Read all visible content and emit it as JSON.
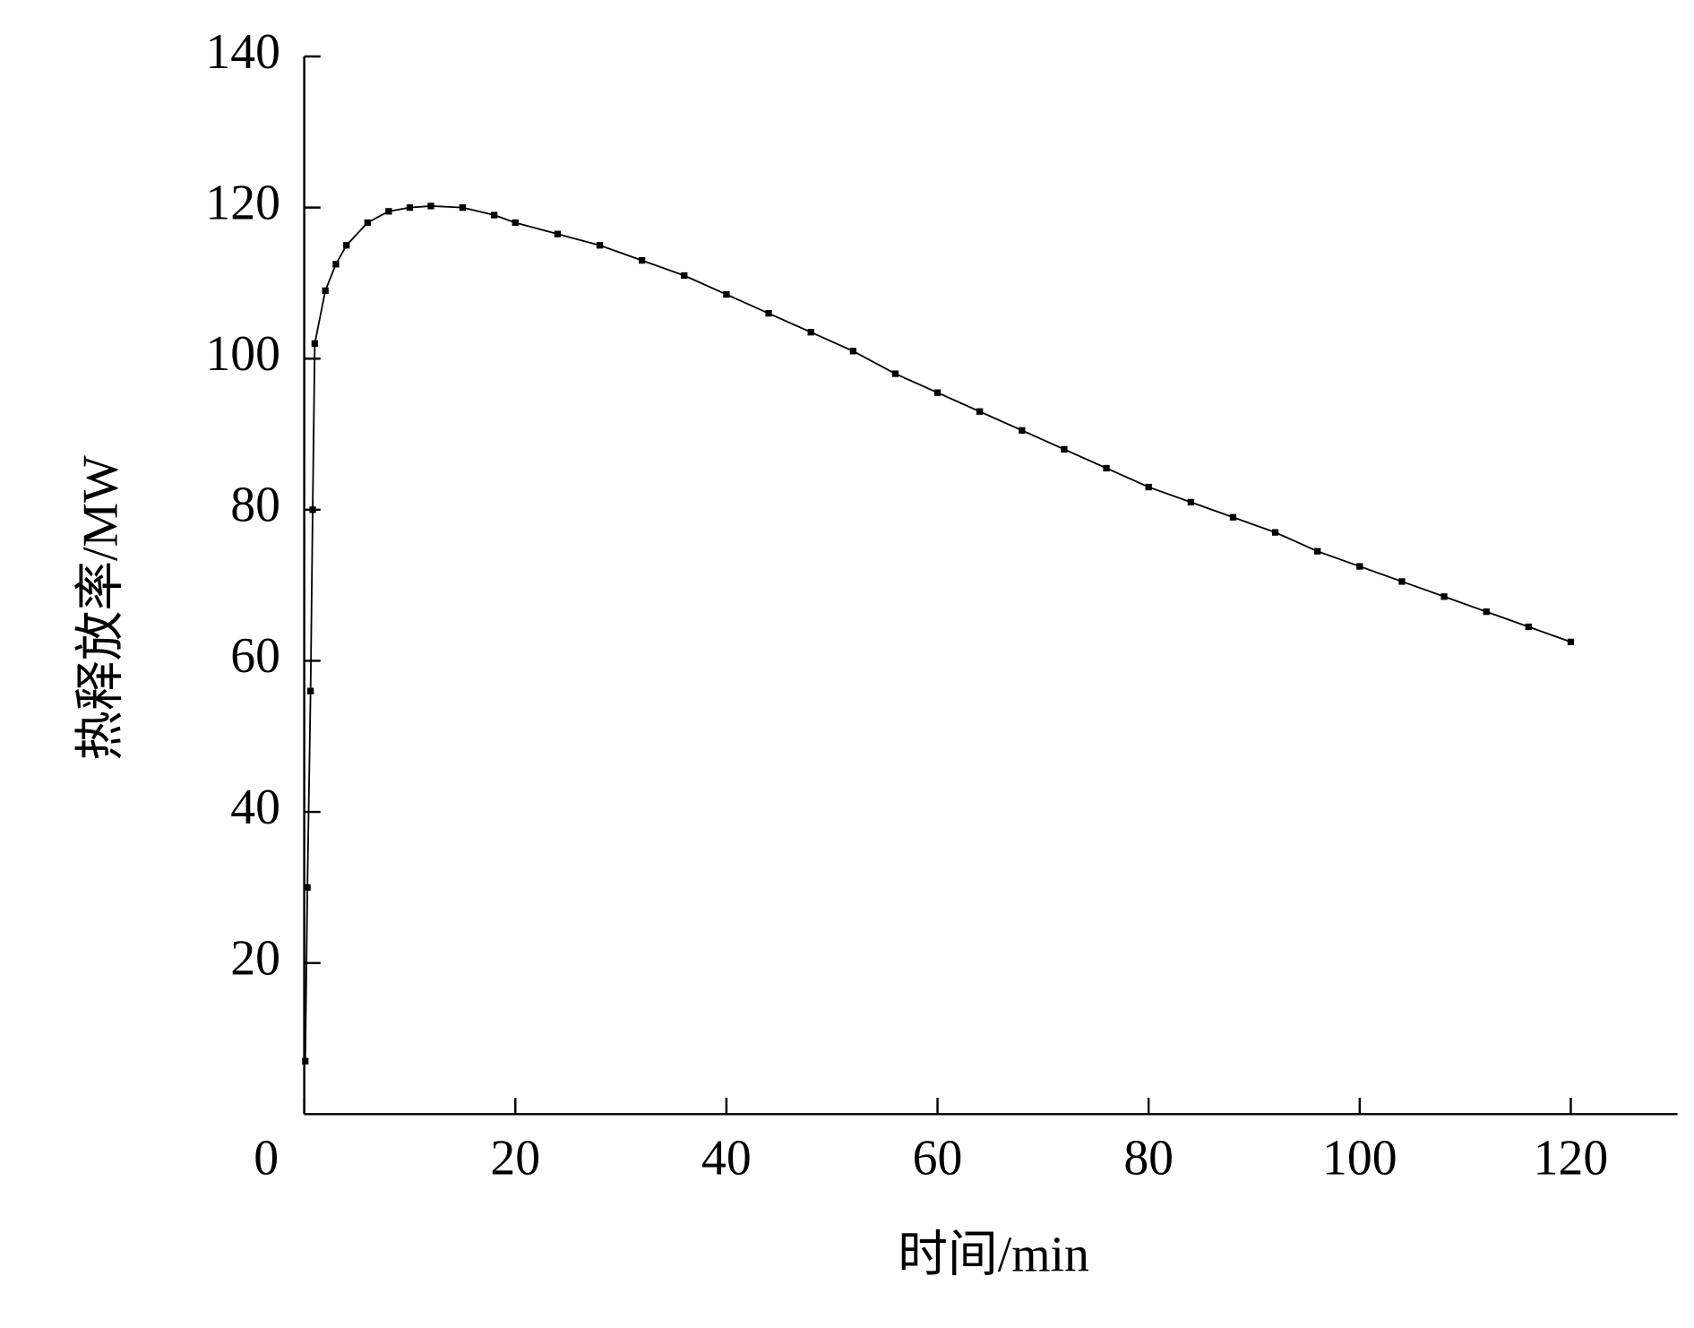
{
  "chart_data": {
    "type": "line",
    "x_label": "时间/min",
    "y_label": "热释放率/MW",
    "xlim": [
      0,
      130
    ],
    "ylim": [
      0,
      140
    ],
    "xticks": [
      0,
      20,
      40,
      60,
      80,
      100,
      120
    ],
    "yticks": [
      20,
      40,
      60,
      80,
      100,
      120,
      140
    ],
    "grid": false,
    "series": [
      {
        "color": "#000000",
        "x": [
          0.1,
          0.3,
          0.6,
          0.8,
          1,
          2,
          3,
          4,
          6,
          8,
          10,
          12,
          15,
          18,
          20,
          24,
          28,
          32,
          36,
          40,
          44,
          48,
          52,
          56,
          60,
          64,
          68,
          72,
          76,
          80,
          84,
          88,
          92,
          96,
          100,
          104,
          108,
          112,
          116,
          120
        ],
        "values": [
          7,
          30,
          56,
          80,
          102,
          109,
          112.5,
          115,
          118,
          119.5,
          120,
          120.2,
          120,
          119,
          118,
          116.5,
          115,
          113,
          111,
          108.5,
          106,
          103.5,
          101,
          98,
          95.5,
          93,
          90.5,
          88,
          85.5,
          83,
          81,
          79,
          77,
          74.5,
          72.5,
          70.5,
          68.5,
          66.5,
          64.5,
          62.5
        ]
      }
    ]
  }
}
